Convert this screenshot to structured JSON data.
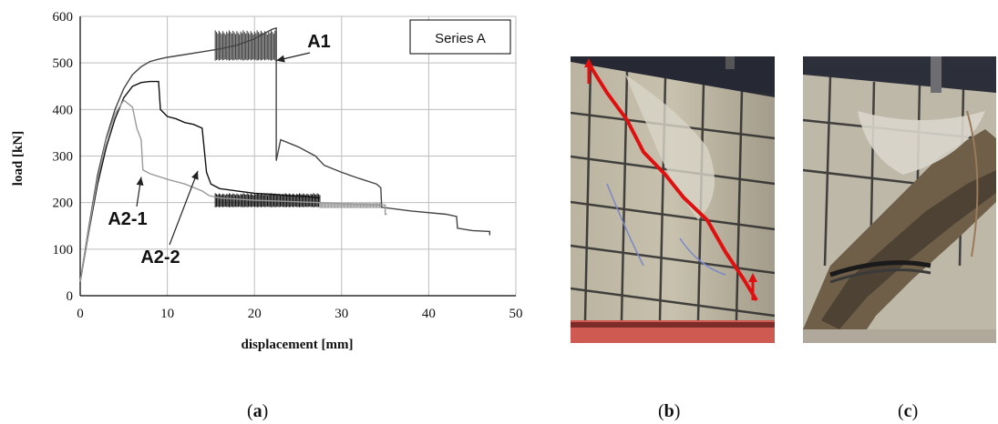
{
  "chart_data": {
    "type": "line",
    "title": "",
    "xlabel": "displacement [mm]",
    "ylabel": "load [kN]",
    "xlim": [
      0,
      50
    ],
    "ylim": [
      0,
      600
    ],
    "xticks": [
      "0",
      "10",
      "20",
      "30",
      "40",
      "50"
    ],
    "yticks": [
      "0",
      "100",
      "200",
      "300",
      "400",
      "500",
      "600"
    ],
    "grid": true,
    "legend": {
      "text": "Series A",
      "placement": "top-right"
    },
    "series": [
      {
        "name": "A1",
        "color": "#444444",
        "x": [
          0,
          1,
          2,
          3,
          4,
          5,
          6,
          7,
          8,
          9,
          10,
          11,
          12,
          14,
          16,
          18,
          20,
          22,
          22.5,
          22.5,
          23,
          25,
          27,
          28,
          30,
          32,
          34,
          34.5,
          34.6,
          38,
          42,
          43.2,
          43.3,
          45,
          47,
          47
        ],
        "y": [
          30,
          150,
          260,
          340,
          400,
          445,
          475,
          492,
          503,
          508,
          512,
          515,
          518,
          524,
          530,
          538,
          552,
          572,
          575,
          290,
          335,
          320,
          300,
          280,
          265,
          252,
          240,
          232,
          190,
          182,
          175,
          170,
          145,
          140,
          138,
          130
        ],
        "band": {
          "x": [
            15.5,
            22.5
          ],
          "ymin": 505,
          "ymax": 570
        }
      },
      {
        "name": "A2-2",
        "color": "#111111",
        "x": [
          0,
          1,
          2,
          3,
          4,
          5,
          6,
          7,
          8,
          9,
          9.2,
          10,
          11,
          12,
          13,
          14,
          14.5,
          15,
          16,
          18,
          20,
          22,
          24,
          26,
          27.5
        ],
        "y": [
          30,
          140,
          240,
          320,
          380,
          425,
          450,
          458,
          460,
          460,
          400,
          385,
          380,
          372,
          368,
          360,
          265,
          240,
          230,
          225,
          220,
          218,
          215,
          213,
          210
        ],
        "band": {
          "x": [
            15.5,
            27.5
          ],
          "ymin": 190,
          "ymax": 220
        }
      },
      {
        "name": "A2-1",
        "color": "#9a9a9a",
        "x": [
          0,
          1,
          2,
          3,
          4,
          5,
          6,
          6.5,
          7,
          7.2,
          8,
          10,
          12,
          14,
          14.8,
          16,
          20,
          27.5,
          30,
          34,
          35,
          35,
          35.2
        ],
        "y": [
          30,
          145,
          250,
          335,
          390,
          420,
          405,
          360,
          335,
          270,
          262,
          250,
          240,
          225,
          215,
          210,
          205,
          200,
          198,
          195,
          195,
          175,
          175
        ],
        "band": {
          "x": [
            27.5,
            34.5
          ],
          "ymin": 188,
          "ymax": 200
        }
      }
    ],
    "annotations": [
      {
        "text": "A1",
        "target": [
          22.5,
          505
        ]
      },
      {
        "text": "A2-1",
        "target": [
          7,
          255
        ]
      },
      {
        "text": "A2-2",
        "target": [
          13.5,
          268
        ]
      }
    ]
  },
  "panels": {
    "a": "a",
    "b": "b",
    "c": "c"
  }
}
